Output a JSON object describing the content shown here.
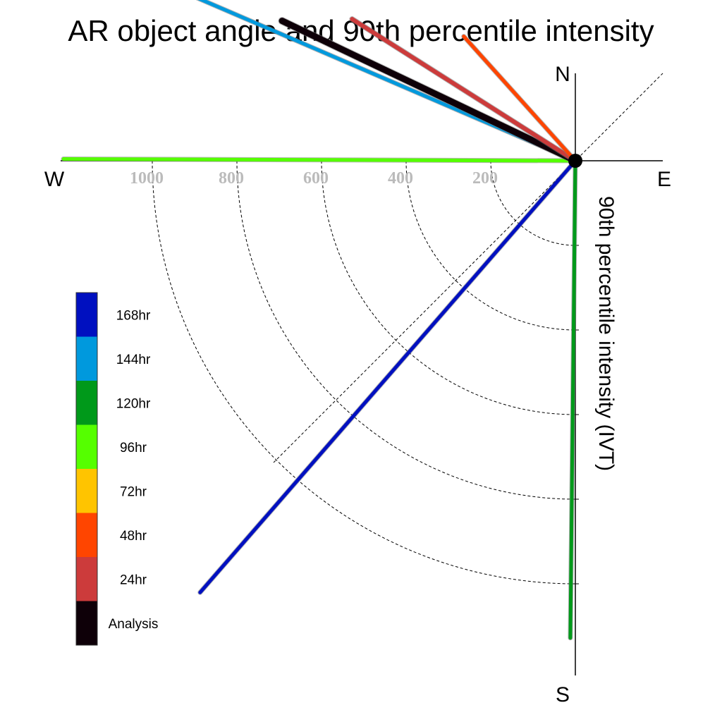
{
  "chart_data": {
    "type": "polar-vector",
    "title": "AR object angle and 90th percentile intensity",
    "ylabel": "90th percentile intensity (IVT)",
    "compass": {
      "north": "N",
      "south": "S",
      "east": "E",
      "west": "W"
    },
    "radial_ticks": [
      200,
      400,
      600,
      800,
      1000
    ],
    "radial_tick_labels": [
      "200",
      "400",
      "600",
      "800",
      "1000"
    ],
    "rlim": [
      0,
      1200
    ],
    "grid": true,
    "legend_placement": "left",
    "legend": [
      {
        "label": "168hr",
        "color": "#0010c0"
      },
      {
        "label": "144hr",
        "color": "#0099dd"
      },
      {
        "label": "120hr",
        "color": "#00991a"
      },
      {
        "label": "96hr",
        "color": "#55ff00"
      },
      {
        "label": "72hr",
        "color": "#ffc400"
      },
      {
        "label": "48hr",
        "color": "#ff4500"
      },
      {
        "label": "24hr",
        "color": "#cc3b3b"
      },
      {
        "label": "Analysis",
        "color": "#0e0008"
      }
    ],
    "series": [
      {
        "name": "96hr",
        "color": "#55ff00",
        "angle_deg": 270.2,
        "magnitude": 1210
      },
      {
        "name": "144hr",
        "color": "#0099dd",
        "angle_deg": 293.3,
        "magnitude": 1220
      },
      {
        "name": "Analysis",
        "color": "#0e0008",
        "angle_deg": 295.5,
        "magnitude": 768
      },
      {
        "name": "24hr",
        "color": "#cc3b3b",
        "angle_deg": 302.4,
        "magnitude": 625
      },
      {
        "name": "48hr",
        "color": "#ff4500",
        "angle_deg": 318.1,
        "magnitude": 395
      },
      {
        "name": "120hr",
        "color": "#00991a",
        "angle_deg": 180.6,
        "magnitude": 1128
      },
      {
        "name": "168hr",
        "color": "#0010c0",
        "angle_deg": 221.0,
        "magnitude": 1352
      }
    ]
  }
}
